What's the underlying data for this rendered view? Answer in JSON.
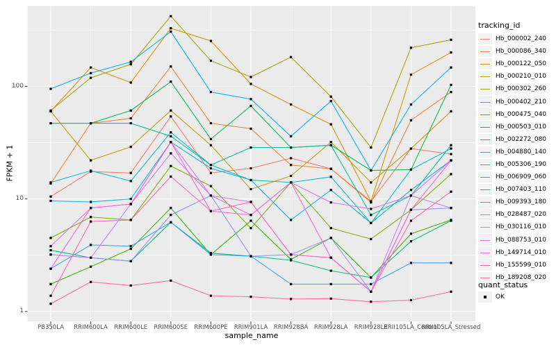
{
  "chart_data": {
    "type": "line",
    "title": "",
    "xlabel": "sample_name",
    "ylabel": "FPKM + 1",
    "y_scale": "log10",
    "ylim": [
      0.81,
      520
    ],
    "y_ticks": [
      1,
      10,
      100
    ],
    "y_minor_ticks": [
      3.162,
      31.62,
      316.2
    ],
    "grid": "on",
    "legend_position": "right",
    "panel_bg": "#EBEBEB",
    "grid_color": "#FFFFFF",
    "tick_label_color": "#4d4d4d",
    "point_shape": "filled-square",
    "point_color": "#000000",
    "categories": [
      "PB350LA",
      "RRIM600LA",
      "RRIM600LE",
      "RRIM600SE",
      "RRIM600PE",
      "RRIM901LA",
      "RRIM928BA",
      "RRIM928LA",
      "RRIM928LE",
      "RRII105LA_Control",
      "RRII105LA_Stressed"
    ],
    "series": [
      {
        "name": "Hb_000002_240",
        "color": "#F8766D",
        "values": [
          10.5,
          17.5,
          17,
          54,
          17,
          18.7,
          23,
          18.5,
          9.5,
          28,
          25
        ]
      },
      {
        "name": "Hb_000086_340",
        "color": "#EA8331",
        "values": [
          13.7,
          47,
          52,
          150,
          47,
          42,
          20,
          18.5,
          9.3,
          50,
          89
        ]
      },
      {
        "name": "Hb_000122_050",
        "color": "#D89000",
        "values": [
          60,
          147,
          108,
          328,
          253,
          105,
          69,
          46,
          9.5,
          127,
          200
        ]
      },
      {
        "name": "Hb_000210_010",
        "color": "#C09B00",
        "values": [
          60,
          22,
          29,
          61,
          30,
          12.2,
          16,
          32,
          14,
          28,
          60
        ]
      },
      {
        "name": "Hb_000302_260",
        "color": "#A3A500",
        "values": [
          61,
          119,
          157,
          420,
          169,
          121,
          182,
          81,
          28.6,
          220,
          259
        ]
      },
      {
        "name": "Hb_000402_210",
        "color": "#7CAE00",
        "values": [
          4.5,
          6.9,
          6.5,
          19.6,
          13,
          5.5,
          14,
          5.5,
          4.4,
          8,
          16.6
        ]
      },
      {
        "name": "Hb_000475_040",
        "color": "#39B600",
        "values": [
          1.75,
          2.5,
          3.6,
          8.3,
          3.2,
          6.4,
          2.9,
          4.5,
          2.0,
          4.9,
          6.5
        ]
      },
      {
        "name": "Hb_000503_010",
        "color": "#00BB4E",
        "values": [
          47,
          47,
          61,
          110,
          34,
          67,
          28.6,
          30,
          17.9,
          18.2,
          103
        ]
      },
      {
        "name": "Hb_002272_080",
        "color": "#00BF7D",
        "values": [
          3.5,
          3.0,
          2.8,
          6.2,
          3.3,
          3.1,
          2.85,
          2.3,
          2.0,
          4.2,
          6.4
        ]
      },
      {
        "name": "Hb_004880_140",
        "color": "#00C1A3",
        "values": [
          47,
          47,
          47,
          36,
          20,
          28.6,
          28.6,
          30,
          7.2,
          10.7,
          30
        ]
      },
      {
        "name": "Hb_005306_190",
        "color": "#00BFC4",
        "values": [
          14,
          17.8,
          14.4,
          39,
          20,
          14.7,
          14,
          15.7,
          6.1,
          18.2,
          28
        ]
      },
      {
        "name": "Hb_006909_060",
        "color": "#00BAE0",
        "values": [
          9.6,
          9.4,
          10,
          32,
          18.7,
          14.7,
          6.5,
          12,
          6.1,
          12,
          22
        ]
      },
      {
        "name": "Hb_007403_110",
        "color": "#00B0F6",
        "values": [
          95,
          131,
          165,
          306,
          89,
          77,
          36,
          74,
          17.9,
          69,
          147
        ]
      },
      {
        "name": "Hb_009393_180",
        "color": "#35A2FF",
        "values": [
          2.4,
          3.9,
          3.8,
          6.2,
          3.2,
          3.1,
          1.75,
          1.75,
          1.75,
          2.7,
          2.7
        ]
      },
      {
        "name": "Hb_028487_020",
        "color": "#9590FF",
        "values": [
          3.2,
          3.0,
          2.8,
          7.2,
          10.7,
          3.1,
          3.2,
          4.5,
          1.5,
          8,
          8.3
        ]
      },
      {
        "name": "Hb_030116_010",
        "color": "#C77CFF",
        "values": [
          3.2,
          3.0,
          9,
          25.4,
          10.7,
          9.4,
          3.2,
          3.0,
          1.5,
          10.7,
          8.3
        ]
      },
      {
        "name": "Hb_088753_010",
        "color": "#E76BF3",
        "values": [
          3.8,
          8.3,
          9,
          32,
          10.7,
          7.2,
          14,
          9.3,
          8.15,
          10.7,
          22
        ]
      },
      {
        "name": "Hb_149714_010",
        "color": "#FA62DB",
        "values": [
          2.4,
          8.3,
          9,
          32,
          7.8,
          7.2,
          14,
          3.0,
          1.5,
          8,
          22
        ]
      },
      {
        "name": "Hb_155599_010",
        "color": "#FF62BC",
        "values": [
          1.38,
          6.3,
          6.5,
          15.8,
          7.8,
          9.4,
          3.2,
          3.0,
          1.5,
          6.4,
          11.6
        ]
      },
      {
        "name": "Hb_189208_020",
        "color": "#FF6A98",
        "values": [
          1.17,
          1.83,
          1.7,
          1.88,
          1.38,
          1.35,
          1.29,
          1.3,
          1.22,
          1.26,
          1.5
        ]
      }
    ]
  },
  "legend": {
    "tracking_title": "tracking_id",
    "quant_title": "quant_status",
    "quant_items": [
      {
        "label": "OK"
      }
    ]
  }
}
